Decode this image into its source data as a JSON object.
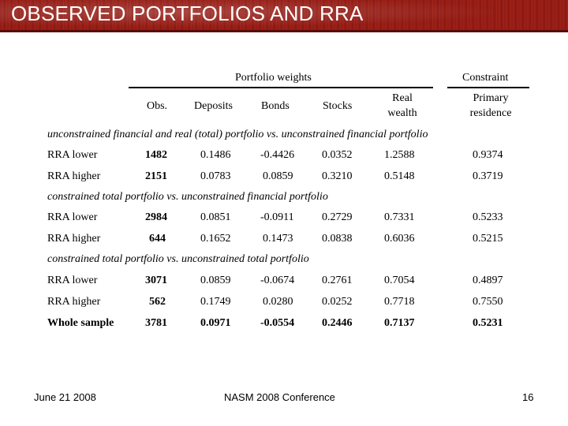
{
  "title": "OBSERVED PORTFOLIOS AND RRA",
  "group_headers": {
    "portfolio_weights": "Portfolio weights",
    "constraint": "Constraint"
  },
  "columns": {
    "obs": "Obs.",
    "deposits": "Deposits",
    "bonds": "Bonds",
    "stocks": "Stocks",
    "real_wealth_1": "Real",
    "real_wealth_2": "wealth",
    "primary_residence_1": "Primary",
    "primary_residence_2": "residence"
  },
  "sections": [
    {
      "heading": "unconstrained financial and real (total) portfolio vs. unconstrained financial portfolio",
      "rows": [
        {
          "label": "RRA lower",
          "obs": "1482",
          "deposits": "0.1486",
          "bonds": "-0.4426",
          "stocks": "0.0352",
          "real_wealth": "1.2588",
          "primary_residence": "0.9374"
        },
        {
          "label": "RRA higher",
          "obs": "2151",
          "deposits": "0.0783",
          "bonds": "0.0859",
          "stocks": "0.3210",
          "real_wealth": "0.5148",
          "primary_residence": "0.3719"
        }
      ]
    },
    {
      "heading": "constrained total portfolio vs. unconstrained financial portfolio",
      "rows": [
        {
          "label": "RRA lower",
          "obs": "2984",
          "deposits": "0.0851",
          "bonds": "-0.0911",
          "stocks": "0.2729",
          "real_wealth": "0.7331",
          "primary_residence": "0.5233"
        },
        {
          "label": "RRA higher",
          "obs": "644",
          "deposits": "0.1652",
          "bonds": "0.1473",
          "stocks": "0.0838",
          "real_wealth": "0.6036",
          "primary_residence": "0.5215"
        }
      ]
    },
    {
      "heading": "constrained total portfolio vs. unconstrained total portfolio",
      "rows": [
        {
          "label": "RRA lower",
          "obs": "3071",
          "deposits": "0.0859",
          "bonds": "-0.0674",
          "stocks": "0.2761",
          "real_wealth": "0.7054",
          "primary_residence": "0.4897"
        },
        {
          "label": "RRA higher",
          "obs": "562",
          "deposits": "0.1749",
          "bonds": "0.0280",
          "stocks": "0.0252",
          "real_wealth": "0.7718",
          "primary_residence": "0.7550"
        }
      ]
    }
  ],
  "whole_sample": {
    "label": "Whole sample",
    "obs": "3781",
    "deposits": "0.0971",
    "bonds": "-0.0554",
    "stocks": "0.2446",
    "real_wealth": "0.7137",
    "primary_residence": "0.5231"
  },
  "footer": {
    "date": "June 21 2008",
    "conference": "NASM 2008 Conference",
    "page": "16"
  }
}
